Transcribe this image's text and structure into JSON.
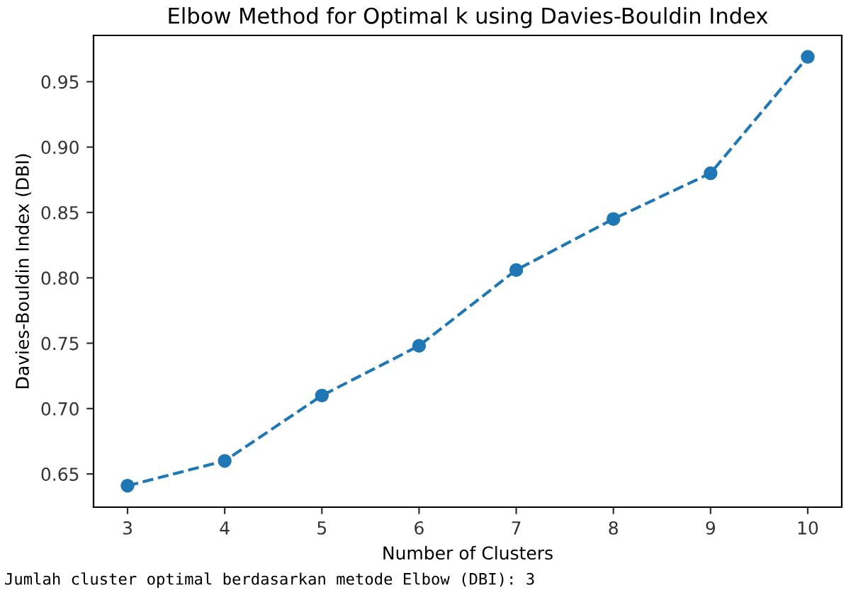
{
  "chart_data": {
    "type": "line",
    "title": "Elbow Method for Optimal k using Davies-Bouldin Index",
    "xlabel": "Number of Clusters",
    "ylabel": "Davies-Bouldin Index (DBI)",
    "x": [
      3,
      4,
      5,
      6,
      7,
      8,
      9,
      10
    ],
    "series": [
      {
        "color": "#1f77b4",
        "values": [
          0.641,
          0.66,
          0.71,
          0.748,
          0.806,
          0.845,
          0.88,
          0.969
        ]
      }
    ],
    "xlim": [
      2.65,
      10.35
    ],
    "xticks": [
      3,
      4,
      5,
      6,
      7,
      8,
      9,
      10
    ],
    "ylim": [
      0.6246,
      0.9854
    ],
    "yticks": [
      {
        "value": 0.65,
        "label": "0.65"
      },
      {
        "value": 0.7,
        "label": "0.70"
      },
      {
        "value": 0.75,
        "label": "0.75"
      },
      {
        "value": 0.8,
        "label": "0.80"
      },
      {
        "value": 0.85,
        "label": "0.85"
      },
      {
        "value": 0.9,
        "label": "0.90"
      },
      {
        "value": 0.95,
        "label": "0.95"
      }
    ],
    "marker": "circle",
    "line_style": "dashed",
    "grid": false,
    "legend": false,
    "annotations": [
      "Jumlah cluster optimal berdasarkan metode Elbow (DBI): 3"
    ]
  }
}
